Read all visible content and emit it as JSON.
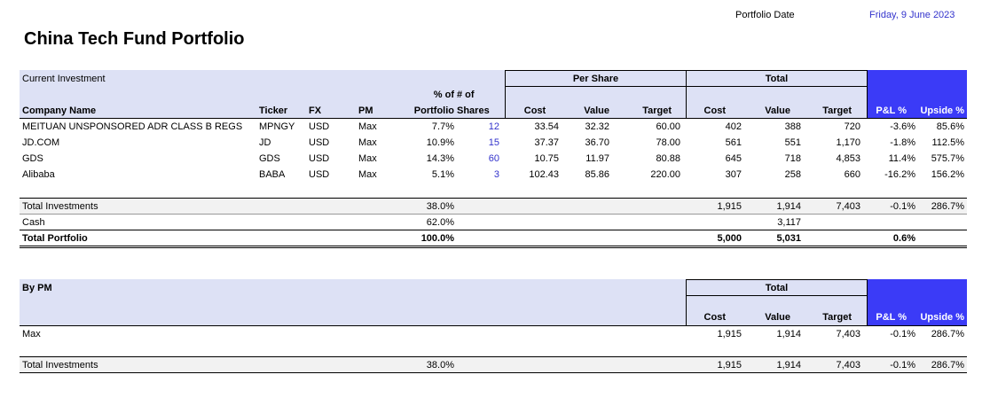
{
  "header": {
    "title": "China Tech Fund Portfolio",
    "date_label": "Portfolio Date",
    "date_value": "Friday, 9 June 2023"
  },
  "section1": {
    "label": "Current Investment",
    "group_per_share": "Per Share",
    "group_total": "Total",
    "columns": {
      "company": "Company Name",
      "ticker": "Ticker",
      "fx": "FX",
      "pm": "PM",
      "pct_top": "% of",
      "pct_bottom": "Portfolio",
      "shares_top": "# of",
      "shares_bottom": "Shares",
      "ps_cost": "Cost",
      "ps_value": "Value",
      "ps_target": "Target",
      "t_cost": "Cost",
      "t_value": "Value",
      "t_target": "Target",
      "pnl": "P&L %",
      "upside": "Upside %"
    },
    "rows": [
      {
        "company": "MEITUAN UNSPONSORED ADR CLASS B REGS",
        "ticker": "MPNGY",
        "fx": "USD",
        "pm": "Max",
        "pct": "7.7%",
        "shares": "12",
        "ps_cost": "33.54",
        "ps_value": "32.32",
        "ps_target": "60.00",
        "t_cost": "402",
        "t_value": "388",
        "t_target": "720",
        "pnl": "-3.6%",
        "upside": "85.6%"
      },
      {
        "company": "JD.COM",
        "ticker": "JD",
        "fx": "USD",
        "pm": "Max",
        "pct": "10.9%",
        "shares": "15",
        "ps_cost": "37.37",
        "ps_value": "36.70",
        "ps_target": "78.00",
        "t_cost": "561",
        "t_value": "551",
        "t_target": "1,170",
        "pnl": "-1.8%",
        "upside": "112.5%"
      },
      {
        "company": "GDS",
        "ticker": "GDS",
        "fx": "USD",
        "pm": "Max",
        "pct": "14.3%",
        "shares": "60",
        "ps_cost": "10.75",
        "ps_value": "11.97",
        "ps_target": "80.88",
        "t_cost": "645",
        "t_value": "718",
        "t_target": "4,853",
        "pnl": "11.4%",
        "upside": "575.7%"
      },
      {
        "company": "Alibaba",
        "ticker": "BABA",
        "fx": "USD",
        "pm": "Max",
        "pct": "5.1%",
        "shares": "3",
        "ps_cost": "102.43",
        "ps_value": "85.86",
        "ps_target": "220.00",
        "t_cost": "307",
        "t_value": "258",
        "t_target": "660",
        "pnl": "-16.2%",
        "upside": "156.2%"
      }
    ],
    "totals": {
      "total_inv": {
        "label": "Total Investments",
        "pct": "38.0%",
        "t_cost": "1,915",
        "t_value": "1,914",
        "t_target": "7,403",
        "pnl": "-0.1%",
        "upside": "286.7%"
      },
      "cash": {
        "label": "Cash",
        "pct": "62.0%",
        "t_value": "3,117"
      },
      "total_port": {
        "label": "Total Portfolio",
        "pct": "100.0%",
        "t_cost": "5,000",
        "t_value": "5,031",
        "pnl": "0.6%"
      }
    }
  },
  "section2": {
    "label": "By PM",
    "group_total": "Total",
    "columns": {
      "t_cost": "Cost",
      "t_value": "Value",
      "t_target": "Target",
      "pnl": "P&L %",
      "upside": "Upside %"
    },
    "rows": [
      {
        "pm": "Max",
        "t_cost": "1,915",
        "t_value": "1,914",
        "t_target": "7,403",
        "pnl": "-0.1%",
        "upside": "286.7%"
      }
    ],
    "total": {
      "label": "Total Investments",
      "pct": "38.0%",
      "t_cost": "1,915",
      "t_value": "1,914",
      "t_target": "7,403",
      "pnl": "-0.1%",
      "upside": "286.7%"
    }
  },
  "colors": {
    "header_band": "#dde1f5",
    "accent_blue": "#3b3bf7",
    "link_blue": "#3333cc"
  }
}
